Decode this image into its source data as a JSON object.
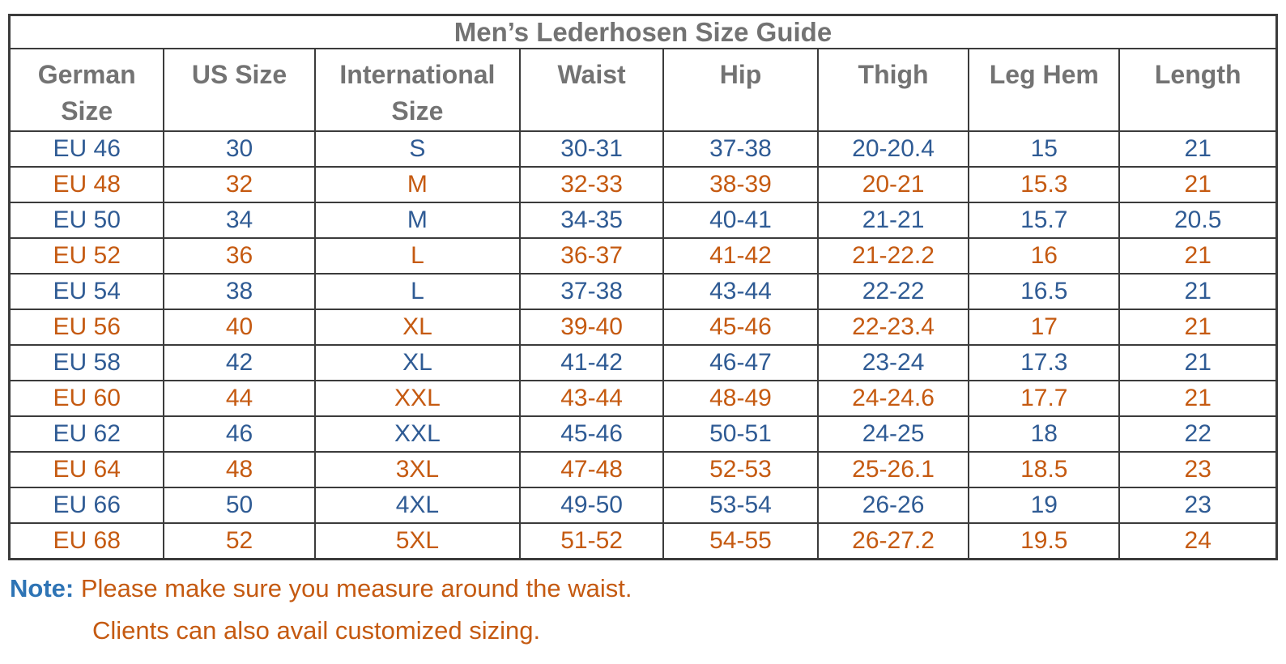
{
  "title": "Men’s Lederhosen Size Guide",
  "headers": [
    "German Size",
    "US Size",
    "International Size",
    "Waist",
    "Hip",
    "Thigh",
    "Leg Hem",
    "Length"
  ],
  "rows": [
    {
      "color": "blue",
      "cells": [
        "EU 46",
        "30",
        "S",
        "30-31",
        "37-38",
        "20-20.4",
        "15",
        "21"
      ]
    },
    {
      "color": "orange",
      "cells": [
        "EU 48",
        "32",
        "M",
        "32-33",
        "38-39",
        "20-21",
        "15.3",
        "21"
      ]
    },
    {
      "color": "blue",
      "cells": [
        "EU 50",
        "34",
        "M",
        "34-35",
        "40-41",
        "21-21",
        "15.7",
        "20.5"
      ]
    },
    {
      "color": "orange",
      "cells": [
        "EU 52",
        "36",
        "L",
        "36-37",
        "41-42",
        "21-22.2",
        "16",
        "21"
      ]
    },
    {
      "color": "blue",
      "cells": [
        "EU 54",
        "38",
        "L",
        "37-38",
        "43-44",
        "22-22",
        "16.5",
        "21"
      ]
    },
    {
      "color": "orange",
      "cells": [
        "EU 56",
        "40",
        "XL",
        "39-40",
        "45-46",
        "22-23.4",
        "17",
        "21"
      ]
    },
    {
      "color": "blue",
      "cells": [
        "EU 58",
        "42",
        "XL",
        "41-42",
        "46-47",
        "23-24",
        "17.3",
        "21"
      ]
    },
    {
      "color": "orange",
      "cells": [
        "EU 60",
        "44",
        "XXL",
        "43-44",
        "48-49",
        "24-24.6",
        "17.7",
        "21"
      ]
    },
    {
      "color": "blue",
      "cells": [
        "EU 62",
        "46",
        "XXL",
        "45-46",
        "50-51",
        "24-25",
        "18",
        "22"
      ]
    },
    {
      "color": "orange",
      "cells": [
        "EU 64",
        "48",
        "3XL",
        "47-48",
        "52-53",
        "25-26.1",
        "18.5",
        "23"
      ]
    },
    {
      "color": "blue",
      "cells": [
        "EU 66",
        "50",
        "4XL",
        "49-50",
        "53-54",
        "26-26",
        "19",
        "23"
      ]
    },
    {
      "color": "orange",
      "cells": [
        "EU 68",
        "52",
        "5XL",
        "51-52",
        "54-55",
        "26-27.2",
        "19.5",
        "24"
      ]
    }
  ],
  "note": {
    "label": "Note:",
    "line1": "Please make sure you measure around the waist.",
    "line2": "Clients can also avail customized sizing."
  },
  "colors": {
    "row_blue": "#2F5B94",
    "row_orange": "#C55A11",
    "header_gray": "#737373",
    "note_blue": "#2E74B5",
    "border": "#3B3B3B"
  },
  "column_widths_pct": [
    12.2,
    11.9,
    16.2,
    11.3,
    12.2,
    11.9,
    11.9,
    12.4
  ]
}
